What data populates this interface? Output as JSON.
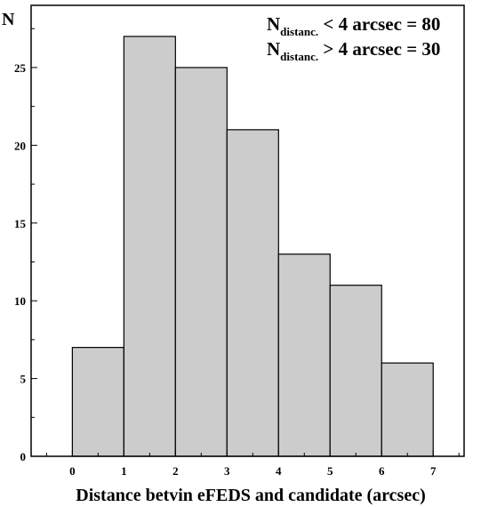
{
  "chart_data": {
    "type": "bar",
    "bins": [
      {
        "from": 0,
        "to": 1,
        "count": 7
      },
      {
        "from": 1,
        "to": 2,
        "count": 27
      },
      {
        "from": 2,
        "to": 3,
        "count": 25
      },
      {
        "from": 3,
        "to": 4,
        "count": 21
      },
      {
        "from": 4,
        "to": 5,
        "count": 13
      },
      {
        "from": 5,
        "to": 6,
        "count": 11
      },
      {
        "from": 6,
        "to": 7,
        "count": 6
      }
    ],
    "xlabel": "Distance betvin eFEDS and candidate (arcsec)",
    "ylabel": "N",
    "xlim": [
      -0.8,
      7.6
    ],
    "ylim": [
      0,
      29
    ],
    "x_ticks": [
      "0",
      "1",
      "2",
      "3",
      "4",
      "5",
      "6",
      "7"
    ],
    "y_ticks": [
      "0",
      "5",
      "10",
      "15",
      "20",
      "25"
    ],
    "bar_color": "#cccccc",
    "grid": false,
    "annotations": [
      {
        "main": "N",
        "sub": "distanc.",
        "rest": " < 4 arcsec = 80"
      },
      {
        "main": "N",
        "sub": "distanc.",
        "rest": " > 4 arcsec = 30"
      }
    ]
  }
}
